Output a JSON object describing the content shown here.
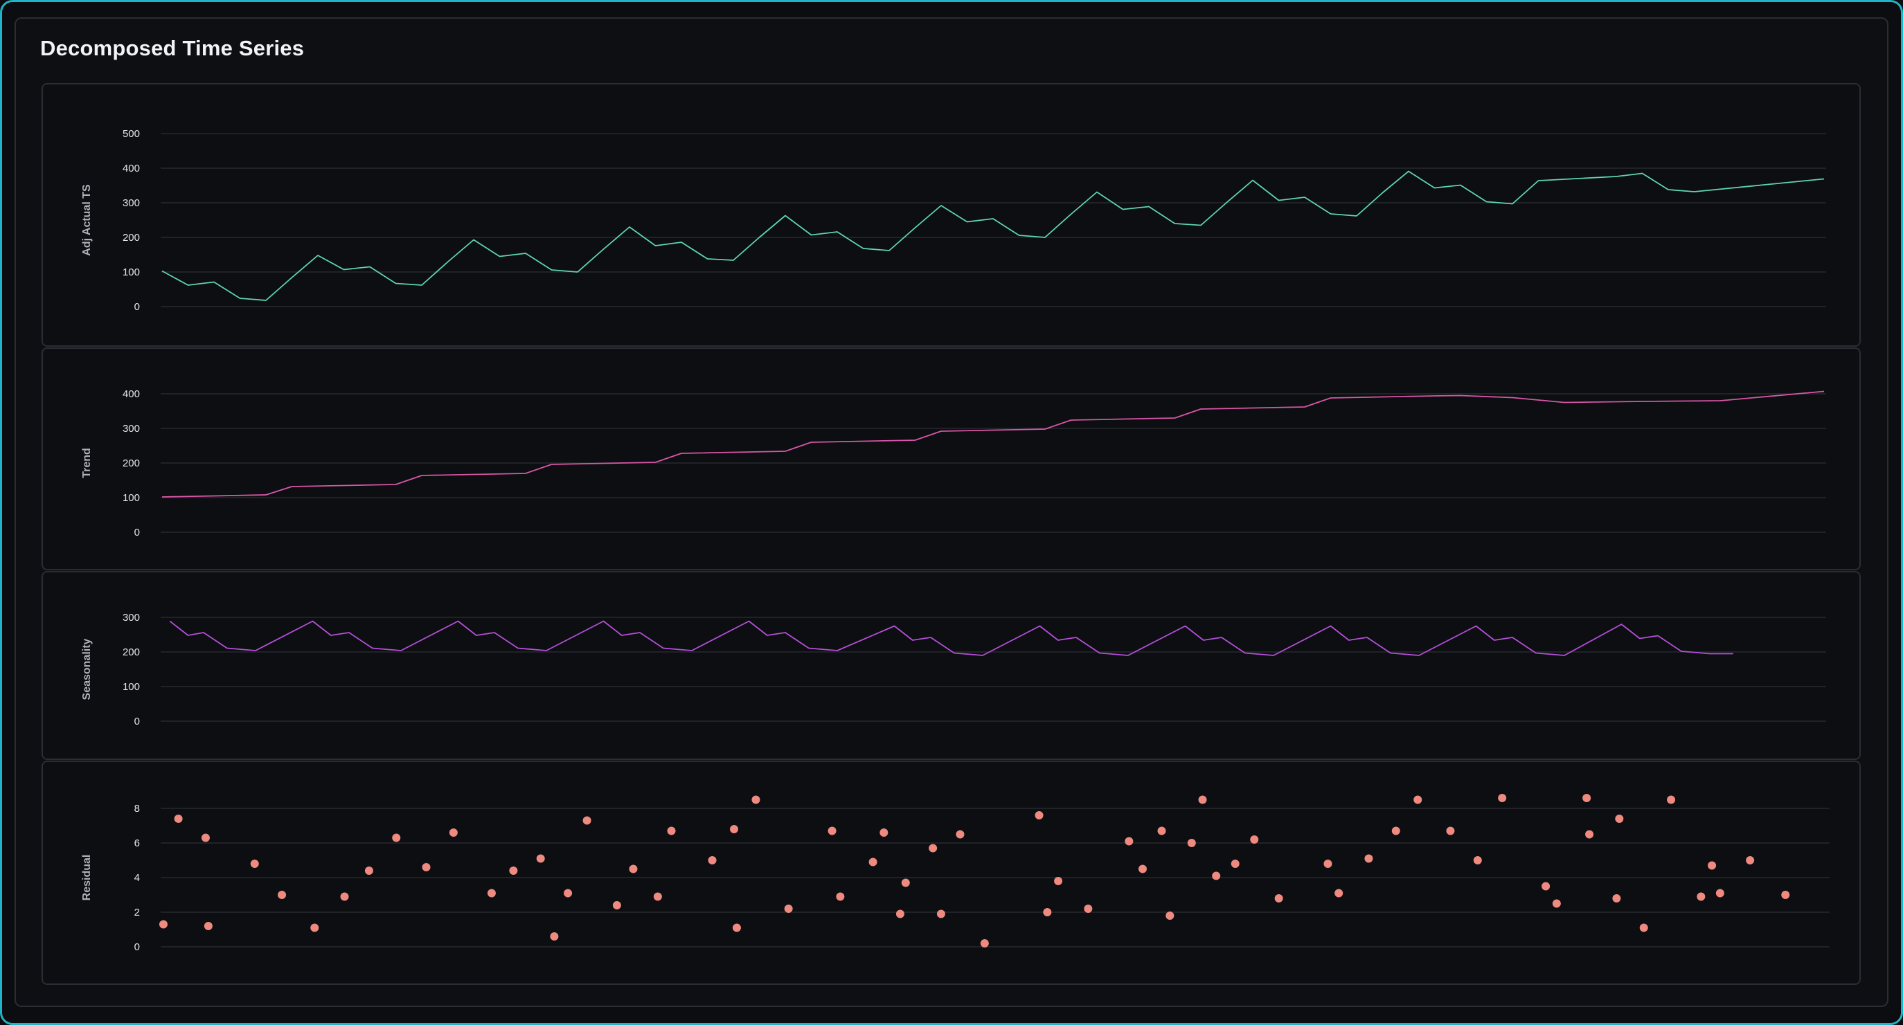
{
  "title": "Decomposed Time Series",
  "chart_data": [
    {
      "type": "line",
      "ylabel": "Adj Actual TS",
      "yticks": [
        0,
        100,
        200,
        300,
        400,
        500
      ],
      "ylim": [
        0,
        500
      ],
      "color": "#5fd4b0",
      "grid": true,
      "values": [
        103,
        62,
        71,
        24,
        18,
        84,
        148,
        107,
        115,
        67,
        62,
        129,
        193,
        145,
        154,
        106,
        100,
        166,
        230,
        176,
        186,
        138,
        134,
        200,
        263,
        207,
        216,
        168,
        162,
        228,
        292,
        245,
        254,
        206,
        200,
        267,
        331,
        281,
        289,
        240,
        235,
        301,
        365,
        307,
        316,
        268,
        262,
        329,
        391,
        343,
        351,
        303,
        297,
        364,
        376,
        385,
        338,
        332,
        369
      ],
      "x": [
        0,
        1,
        2,
        3,
        4,
        5,
        6,
        7,
        8,
        9,
        10,
        11,
        12,
        13,
        14,
        15,
        16,
        17,
        18,
        19,
        20,
        21,
        22,
        23,
        24,
        25,
        26,
        27,
        28,
        29,
        30,
        31,
        32,
        33,
        34,
        35,
        36,
        37,
        38,
        39,
        40,
        41,
        42,
        43,
        44,
        45,
        46,
        47,
        48,
        49,
        50,
        51,
        52,
        53,
        56,
        57,
        58,
        59,
        64
      ],
      "xlim": [
        0,
        64
      ]
    },
    {
      "type": "line",
      "ylabel": "Trend",
      "yticks": [
        0,
        100,
        200,
        300,
        400
      ],
      "ylim": [
        0,
        460
      ],
      "color": "#d956a8",
      "grid": true,
      "x": [
        0,
        4,
        5,
        9,
        10,
        14,
        15,
        19,
        20,
        24,
        25,
        29,
        30,
        34,
        35,
        39,
        40,
        44,
        45,
        49,
        50,
        52,
        54,
        57,
        60,
        64
      ],
      "values": [
        102,
        108,
        132,
        138,
        164,
        170,
        196,
        202,
        228,
        234,
        260,
        266,
        292,
        298,
        324,
        330,
        356,
        362,
        388,
        394,
        395,
        389,
        375,
        378,
        380,
        407
      ],
      "xlim": [
        0,
        64
      ]
    },
    {
      "type": "line",
      "ylabel": "Seasonality",
      "yticks": [
        0,
        100,
        200,
        300
      ],
      "ylim": [
        0,
        370
      ],
      "color": "#b54fd8",
      "grid": true,
      "x": [
        0.3,
        1,
        1.6,
        2.5,
        3.6,
        5.8,
        6.5,
        7.2,
        8.1,
        9.2,
        11.4,
        12.1,
        12.8,
        13.7,
        14.8,
        17.0,
        17.7,
        18.4,
        19.3,
        20.4,
        22.6,
        23.3,
        24.0,
        24.9,
        26.0,
        28.2,
        28.9,
        29.6,
        30.5,
        31.6,
        33.8,
        34.5,
        35.2,
        36.1,
        37.2,
        39.4,
        40.1,
        40.8,
        41.7,
        42.8,
        45.0,
        45.7,
        46.4,
        47.3,
        48.4,
        50.6,
        51.3,
        52.0,
        52.9,
        54.0,
        56.2,
        56.9,
        57.6,
        58.5,
        59.6,
        60.5
      ],
      "values": [
        289,
        248,
        256,
        211,
        204,
        289,
        248,
        256,
        211,
        204,
        289,
        248,
        256,
        211,
        204,
        289,
        248,
        256,
        211,
        204,
        289,
        248,
        256,
        211,
        204,
        275,
        234,
        242,
        197,
        190,
        275,
        234,
        242,
        197,
        190,
        275,
        234,
        242,
        197,
        190,
        275,
        234,
        242,
        197,
        190,
        275,
        234,
        242,
        197,
        190,
        280,
        239,
        247,
        202,
        195,
        195
      ],
      "xlim": [
        0,
        64
      ]
    },
    {
      "type": "scatter",
      "ylabel": "Residual",
      "yticks": [
        0,
        2,
        4,
        6,
        8
      ],
      "ylim": [
        -0.6,
        9.2
      ],
      "color": "#ef8a80",
      "grid": true,
      "x": [
        0.05,
        0.6,
        1.6,
        1.7,
        3.4,
        4.4,
        5.6,
        6.7,
        7.6,
        8.6,
        9.7,
        10.7,
        12.1,
        12.9,
        13.9,
        14.4,
        14.9,
        15.6,
        16.7,
        17.3,
        18.2,
        18.7,
        20.2,
        21.0,
        21.1,
        21.8,
        23.0,
        24.6,
        24.9,
        26.1,
        26.5,
        27.1,
        27.3,
        28.3,
        28.6,
        29.3,
        30.2,
        32.2,
        32.5,
        32.9,
        34.0,
        35.5,
        36.0,
        36.7,
        37.0,
        37.8,
        38.2,
        38.7,
        39.4,
        40.1,
        41.0,
        42.8,
        43.2,
        44.3,
        45.3,
        46.1,
        47.3,
        48.3,
        49.2,
        50.8,
        51.2,
        52.3,
        52.4,
        53.4,
        53.5,
        54.4,
        55.4,
        56.5,
        56.9,
        57.2,
        58.3,
        59.6
      ],
      "values": [
        1.3,
        7.4,
        6.3,
        1.2,
        4.8,
        3.0,
        1.1,
        2.9,
        4.4,
        6.3,
        4.6,
        6.6,
        3.1,
        4.4,
        5.1,
        0.6,
        3.1,
        7.3,
        2.4,
        4.5,
        2.9,
        6.7,
        5.0,
        6.8,
        1.1,
        8.5,
        2.2,
        6.7,
        2.9,
        4.9,
        6.6,
        1.9,
        3.7,
        5.7,
        1.9,
        6.5,
        0.2,
        7.6,
        2.0,
        3.8,
        2.2,
        6.1,
        4.5,
        6.7,
        1.8,
        6.0,
        8.5,
        4.1,
        4.8,
        6.2,
        2.8,
        4.8,
        3.1,
        5.1,
        6.7,
        8.5,
        6.7,
        5.0,
        8.6,
        3.5,
        2.5,
        8.6,
        6.5,
        2.8,
        7.4,
        1.1,
        8.5,
        2.9,
        4.7,
        3.1,
        5.0,
        3.0
      ],
      "xlim": [
        0,
        60
      ]
    }
  ]
}
